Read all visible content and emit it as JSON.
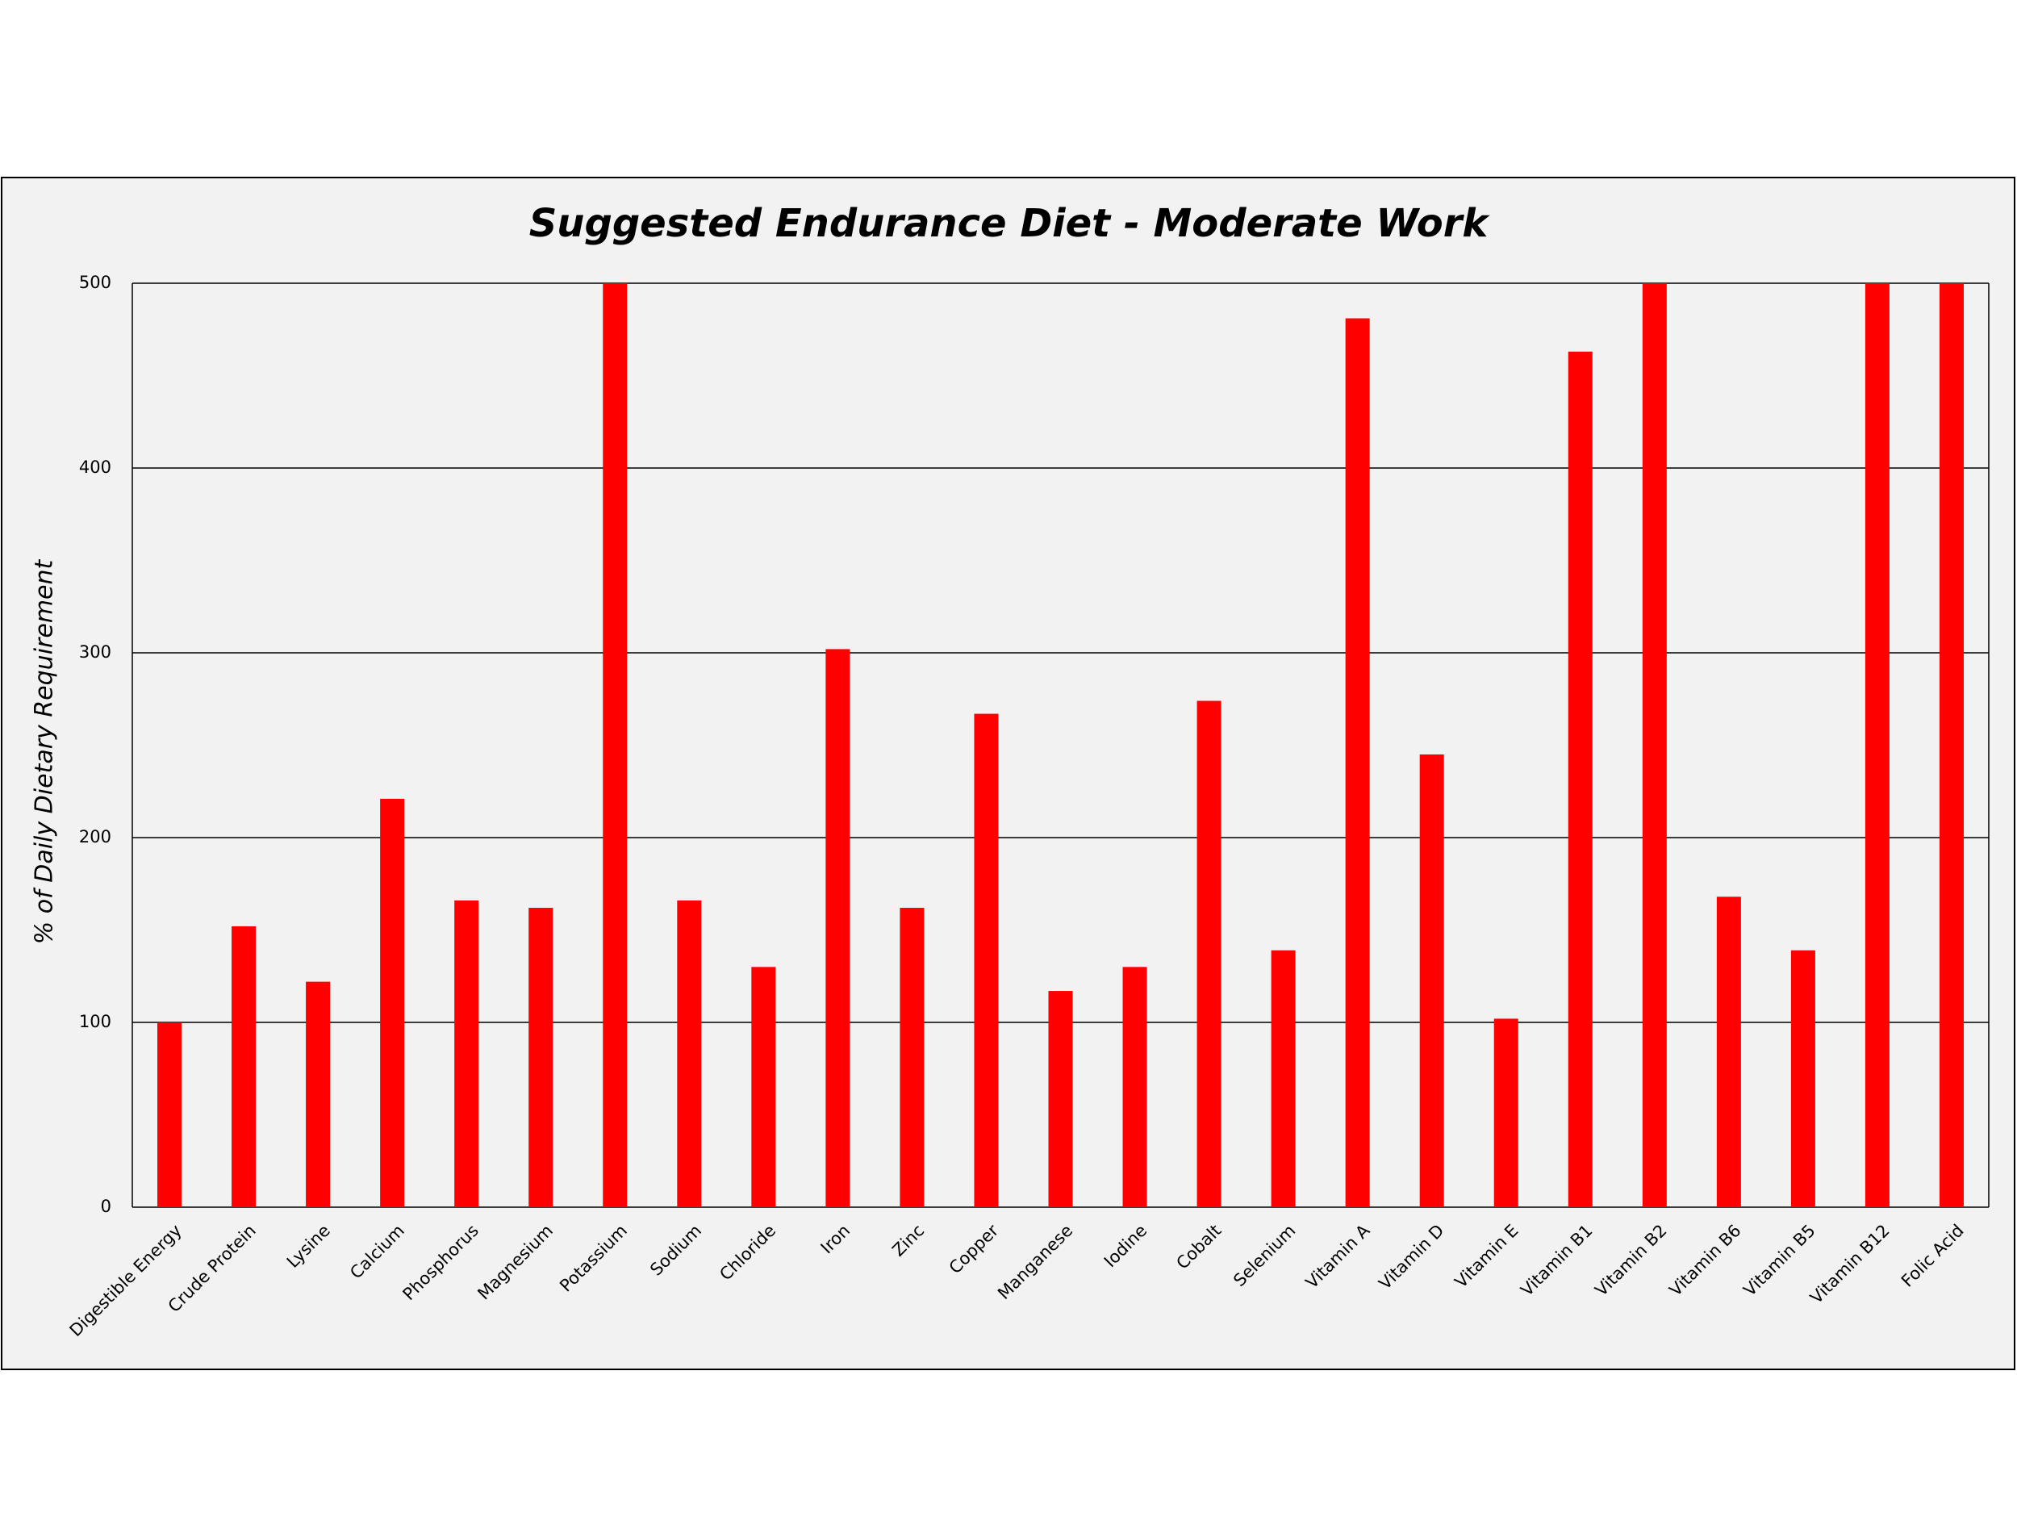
{
  "chart_data": {
    "type": "bar",
    "title": "Suggested Endurance Diet - Moderate Work",
    "y_label": "% of Daily Dietary Requirement",
    "categories": [
      "Digestible Energy",
      "Crude Protein",
      "Lysine",
      "Calcium",
      "Phosphorus",
      "Magnesium",
      "Potassium",
      "Sodium",
      "Chloride",
      "Iron",
      "Zinc",
      "Copper",
      "Manganese",
      "Iodine",
      "Cobalt",
      "Selenium",
      "Vitamin A",
      "Vitamin D",
      "Vitamin E",
      "Vitamin B1",
      "Vitamin B2",
      "Vitamin B6",
      "Vitamin B5",
      "Vitamin B12",
      "Folic Acid"
    ],
    "values": [
      100,
      152,
      122,
      221,
      166,
      162,
      500,
      166,
      130,
      302,
      162,
      267,
      117,
      130,
      274,
      139,
      481,
      245,
      102,
      463,
      500,
      168,
      139,
      500,
      500
    ],
    "color": "#ff0000",
    "ylim": [
      0,
      500
    ],
    "yticks": [
      0,
      100,
      200,
      300,
      400,
      500
    ],
    "grid": true
  }
}
